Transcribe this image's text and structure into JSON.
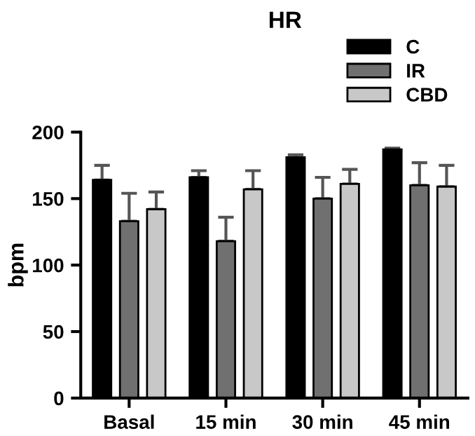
{
  "chart_data": {
    "type": "bar",
    "title": "HR",
    "ylabel": "bpm",
    "categories": [
      "Basal",
      "15 min",
      "30 min",
      "45 min"
    ],
    "series": [
      {
        "name": "C",
        "color": "#000000",
        "values": [
          164,
          166,
          181,
          187
        ],
        "errors": [
          [
            164,
            175
          ],
          [
            166,
            171
          ],
          [
            181,
            183
          ],
          [
            187,
            188
          ]
        ]
      },
      {
        "name": "IR",
        "color": "#707070",
        "values": [
          133,
          118,
          150,
          160
        ],
        "errors": [
          [
            133,
            154
          ],
          [
            118,
            136
          ],
          [
            150,
            166
          ],
          [
            160,
            177
          ]
        ]
      },
      {
        "name": "CBD",
        "color": "#c8c8c8",
        "values": [
          142,
          157,
          161,
          159
        ],
        "errors": [
          [
            142,
            155
          ],
          [
            157,
            171
          ],
          [
            161,
            172
          ],
          [
            159,
            175
          ]
        ]
      }
    ],
    "ylim": [
      0,
      200
    ],
    "yticks": [
      0,
      50,
      100,
      150,
      200
    ],
    "grid": false,
    "legend": "top right"
  }
}
